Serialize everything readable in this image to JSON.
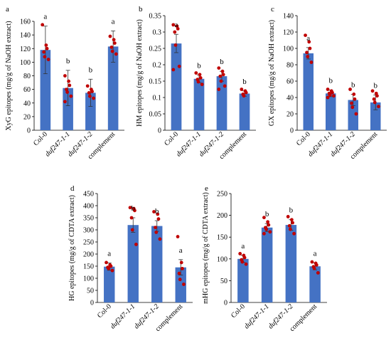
{
  "colors": {
    "bar": "#4472C4",
    "dot": "#C00000",
    "axis": "#000000"
  },
  "chart_data": [
    {
      "panel": "a",
      "type": "bar",
      "categories": [
        "Col-0",
        "duf247-1-1",
        "duf247-1-2",
        "complement"
      ],
      "italic_categories": [
        false,
        true,
        true,
        false
      ],
      "values": [
        118,
        62,
        55,
        123
      ],
      "errors": [
        35,
        26,
        20,
        23
      ],
      "letters": [
        "a",
        "b",
        "b",
        "a"
      ],
      "points": [
        [
          155,
          125,
          120,
          115,
          108,
          104
        ],
        [
          80,
          72,
          66,
          60,
          56,
          50,
          42
        ],
        [
          65,
          60,
          57,
          55,
          50,
          47
        ],
        [
          138,
          133,
          128,
          122,
          116,
          112
        ]
      ],
      "ylabel": "XyG epitopes (mg/g of NaOH extract)",
      "ylim": [
        0,
        160
      ],
      "yticks": [
        0,
        20,
        40,
        60,
        80,
        100,
        120,
        140,
        160
      ]
    },
    {
      "panel": "b",
      "type": "bar",
      "categories": [
        "Col-0",
        "duf247-1-1",
        "duf247-1-2",
        "complement"
      ],
      "italic_categories": [
        false,
        true,
        true,
        false
      ],
      "values": [
        0.265,
        0.157,
        0.165,
        0.112
      ],
      "errors": [
        0.028,
        0.012,
        0.015,
        0.008
      ],
      "letters": [
        "a",
        "b",
        "b",
        "b"
      ],
      "points": [
        [
          0.322,
          0.318,
          0.31,
          0.3,
          0.26,
          0.195,
          0.185
        ],
        [
          0.175,
          0.17,
          0.16,
          0.155,
          0.148,
          0.14
        ],
        [
          0.19,
          0.18,
          0.17,
          0.165,
          0.15,
          0.135,
          0.125
        ],
        [
          0.125,
          0.12,
          0.115,
          0.11,
          0.105
        ]
      ],
      "ylabel": "HM epitopes (mg/g of NaOH extract)",
      "ylim": [
        0,
        0.35
      ],
      "yticks": [
        0,
        0.05,
        0.1,
        0.15,
        0.2,
        0.25,
        0.3,
        0.35
      ],
      "ytick_labels": [
        "0",
        "0.05",
        "0.1",
        "0.15",
        "0.2",
        "0.25",
        "0.3",
        "0.35"
      ]
    },
    {
      "panel": "c",
      "type": "bar",
      "categories": [
        "Col-0",
        "duf247-1-1",
        "duf247-1-2",
        "complement"
      ],
      "italic_categories": [
        false,
        true,
        true,
        false
      ],
      "values": [
        94,
        45,
        37,
        34
      ],
      "errors": [
        7,
        4,
        7,
        9
      ],
      "letters": [
        "a",
        "b",
        "b",
        "b"
      ],
      "points": [
        [
          116,
          108,
          100,
          95,
          90,
          83
        ],
        [
          50,
          48,
          46,
          45,
          43,
          42,
          40
        ],
        [
          50,
          44,
          38,
          33,
          28,
          20
        ],
        [
          48,
          45,
          42,
          38,
          34,
          29
        ]
      ],
      "ylabel": "GX epitopes (mg/g of NaOH extract)",
      "ylim": [
        0,
        140
      ],
      "yticks": [
        0,
        20,
        40,
        60,
        80,
        100,
        120,
        140
      ]
    },
    {
      "panel": "d",
      "type": "bar",
      "categories": [
        "Col-0",
        "duf247-1-1",
        "duf247-1-2",
        "complement"
      ],
      "italic_categories": [
        false,
        true,
        true,
        false
      ],
      "values": [
        148,
        320,
        316,
        145
      ],
      "errors": [
        15,
        30,
        22,
        32
      ],
      "letters": [
        "a",
        "b",
        "b",
        "a"
      ],
      "points": [
        [
          165,
          155,
          150,
          145,
          140,
          132
        ],
        [
          392,
          388,
          380,
          350,
          300,
          240
        ],
        [
          375,
          365,
          345,
          310,
          290,
          262
        ],
        [
          272,
          165,
          140,
          120,
          95,
          75
        ]
      ],
      "ylabel": "HG epitopes (mg/g of CDTA extract)",
      "ylim": [
        0,
        450
      ],
      "yticks": [
        0,
        50,
        100,
        150,
        200,
        250,
        300,
        350,
        400,
        450
      ]
    },
    {
      "panel": "e",
      "type": "bar",
      "categories": [
        "Col-0",
        "duf247-1-1",
        "duf247-1-2",
        "complement"
      ],
      "italic_categories": [
        false,
        true,
        true,
        false
      ],
      "values": [
        100,
        172,
        178,
        83
      ],
      "errors": [
        8,
        9,
        12,
        8
      ],
      "letters": [
        "a",
        "b",
        "b",
        "a"
      ],
      "points": [
        [
          112,
          108,
          103,
          98,
          93,
          88
        ],
        [
          195,
          185,
          178,
          172,
          168,
          162,
          158
        ],
        [
          197,
          190,
          183,
          176,
          168,
          158
        ],
        [
          93,
          90,
          86,
          82,
          78,
          68
        ]
      ],
      "ylabel": "mHG epitopes (mg/g of CDTA extract)",
      "ylim": [
        0,
        250
      ],
      "yticks": [
        0,
        50,
        100,
        150,
        200,
        250
      ]
    }
  ]
}
